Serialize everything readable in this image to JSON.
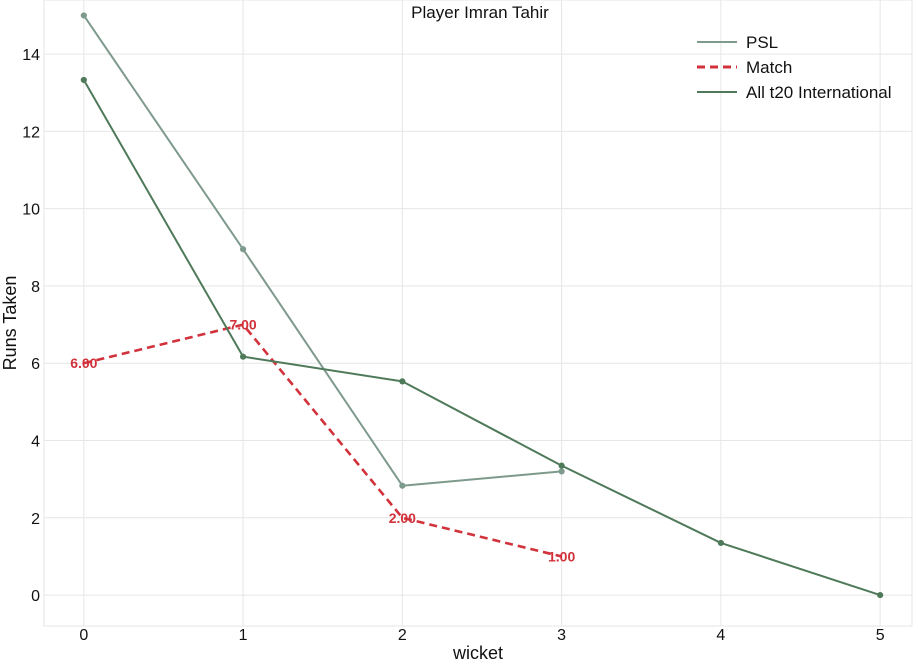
{
  "chart_data": {
    "type": "line",
    "title": "Player Imran Tahir",
    "xlabel": "wicket",
    "ylabel": "Runs Taken",
    "xlim": [
      -0.25,
      5.2
    ],
    "ylim": [
      -0.8,
      15.4
    ],
    "xticks": [
      0,
      1,
      2,
      3,
      4,
      5
    ],
    "yticks": [
      0,
      2,
      4,
      6,
      8,
      10,
      12,
      14
    ],
    "grid": true,
    "legend_position": "top-right",
    "series": [
      {
        "name": "PSL",
        "style": "solid",
        "color": "#7e9a8c",
        "x": [
          0,
          1,
          2,
          3
        ],
        "y": [
          15.0,
          8.95,
          2.83,
          3.2
        ],
        "labels": []
      },
      {
        "name": "Match",
        "style": "dashed",
        "color": "#d1323b",
        "x": [
          0,
          1,
          2,
          3
        ],
        "y": [
          6.0,
          7.0,
          2.0,
          1.0
        ],
        "labels": [
          "6.00",
          "7.00",
          "2.00",
          "1.00"
        ]
      },
      {
        "name": "All t20 International",
        "style": "solid",
        "color": "#4f7a5a",
        "x": [
          0,
          1,
          2,
          3,
          4,
          5
        ],
        "y": [
          13.33,
          6.17,
          5.53,
          3.35,
          1.35,
          0.0
        ],
        "labels": []
      }
    ]
  }
}
